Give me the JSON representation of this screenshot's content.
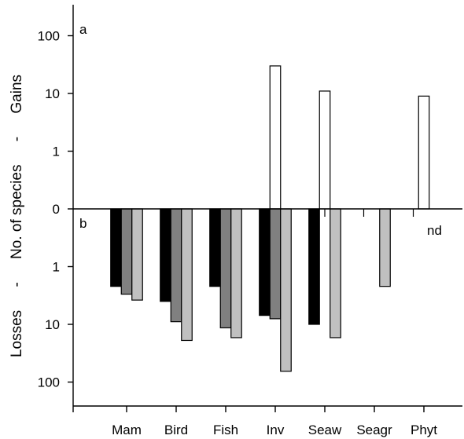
{
  "chart_data": {
    "type": "bar",
    "scale": "log",
    "y_ticks": [
      "100",
      "10",
      "1",
      "0",
      "1",
      "10",
      "100"
    ],
    "y_axis_title": {
      "losses": "Losses",
      "dash1": "-",
      "middle": "No. of species",
      "dash2": "-",
      "gains": "Gains"
    },
    "panel_labels": {
      "top": "a",
      "bottom": "b"
    },
    "annotations": [
      {
        "category": "Phyt",
        "text": "nd"
      }
    ],
    "categories": [
      "Mam",
      "Bird",
      "Fish",
      "Inv",
      "Seaw",
      "Seagr",
      "Phyt"
    ],
    "gains": {
      "color": "#ffffff",
      "values": [
        null,
        null,
        null,
        30,
        11,
        null,
        9
      ]
    },
    "losses": {
      "series": [
        {
          "color": "#000000",
          "values": [
            2.2,
            4,
            2.2,
            7,
            10,
            null,
            null
          ]
        },
        {
          "color": "#808080",
          "values": [
            3,
            9,
            11.5,
            8,
            null,
            null,
            null
          ]
        },
        {
          "color": "#c0c0c0",
          "values": [
            3.8,
            19,
            17,
            65,
            17,
            2.2,
            null
          ]
        }
      ]
    },
    "grid": false
  }
}
